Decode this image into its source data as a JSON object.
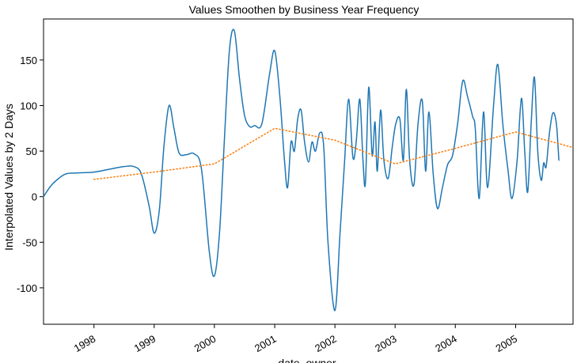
{
  "chart_data": {
    "type": "line",
    "title": "Values Smoothen by Business Year Frequency",
    "xlabel": "date_owner",
    "ylabel": "Interpolated Values by 2 Days",
    "xlim": [
      "1997-03-01",
      "2005-12-15"
    ],
    "ylim": [
      -140,
      195
    ],
    "y_ticks": [
      150,
      100,
      50,
      0,
      -50,
      -100
    ],
    "y_tick_labels": [
      "150",
      "100",
      "50",
      "0",
      "-50",
      "-100"
    ],
    "x_ticks": [
      "1998-01-01",
      "1999-01-01",
      "2000-01-01",
      "2001-01-01",
      "2002-01-01",
      "2003-01-01",
      "2004-01-01",
      "2005-01-01"
    ],
    "x_tick_labels": [
      "1998",
      "1999",
      "2000",
      "2001",
      "2002",
      "2003",
      "2004",
      "2005"
    ],
    "grid": false,
    "series": [
      {
        "color": "#1f77b4",
        "style": "solid",
        "points": [
          [
            "1997-03-01",
            0
          ],
          [
            "1997-04-15",
            12
          ],
          [
            "1997-06-01",
            20
          ],
          [
            "1997-07-15",
            25
          ],
          [
            "1997-09-15",
            26
          ],
          [
            "1998-01-01",
            27
          ],
          [
            "1998-04-01",
            30
          ],
          [
            "1998-07-01",
            33
          ],
          [
            "1998-09-01",
            33
          ],
          [
            "1998-10-15",
            25
          ],
          [
            "1998-12-01",
            -10
          ],
          [
            "1999-01-01",
            -40
          ],
          [
            "1999-02-01",
            -15
          ],
          [
            "1999-03-01",
            55
          ],
          [
            "1999-04-01",
            100
          ],
          [
            "1999-05-01",
            75
          ],
          [
            "1999-06-01",
            48
          ],
          [
            "1999-07-15",
            46
          ],
          [
            "1999-09-01",
            47
          ],
          [
            "1999-10-15",
            30
          ],
          [
            "1999-12-01",
            -60
          ],
          [
            "2000-01-01",
            -87
          ],
          [
            "2000-02-01",
            -40
          ],
          [
            "2000-03-01",
            60
          ],
          [
            "2000-04-01",
            160
          ],
          [
            "2000-05-01",
            182
          ],
          [
            "2000-06-01",
            130
          ],
          [
            "2000-07-01",
            90
          ],
          [
            "2000-08-01",
            77
          ],
          [
            "2000-09-01",
            78
          ],
          [
            "2000-10-15",
            80
          ],
          [
            "2000-12-01",
            135
          ],
          [
            "2001-01-01",
            160
          ],
          [
            "2001-02-01",
            110
          ],
          [
            "2001-03-01",
            40
          ],
          [
            "2001-03-20",
            10
          ],
          [
            "2001-04-10",
            60
          ],
          [
            "2001-04-30",
            50
          ],
          [
            "2001-05-20",
            85
          ],
          [
            "2001-06-10",
            95
          ],
          [
            "2001-07-01",
            60
          ],
          [
            "2001-07-25",
            38
          ],
          [
            "2001-08-15",
            60
          ],
          [
            "2001-09-05",
            50
          ],
          [
            "2001-10-01",
            70
          ],
          [
            "2001-10-25",
            55
          ],
          [
            "2001-11-20",
            -50
          ],
          [
            "2002-01-01",
            -125
          ],
          [
            "2002-02-01",
            -40
          ],
          [
            "2002-03-01",
            40
          ],
          [
            "2002-03-25",
            107
          ],
          [
            "2002-04-20",
            43
          ],
          [
            "2002-05-10",
            60
          ],
          [
            "2002-06-01",
            107
          ],
          [
            "2002-06-20",
            40
          ],
          [
            "2002-07-05",
            15
          ],
          [
            "2002-07-25",
            120
          ],
          [
            "2002-08-15",
            45
          ],
          [
            "2002-09-01",
            82
          ],
          [
            "2002-09-15",
            28
          ],
          [
            "2002-10-05",
            95
          ],
          [
            "2002-10-25",
            40
          ],
          [
            "2002-11-20",
            20
          ],
          [
            "2002-12-15",
            55
          ],
          [
            "2003-01-05",
            80
          ],
          [
            "2003-01-30",
            85
          ],
          [
            "2003-02-20",
            40
          ],
          [
            "2003-03-10",
            118
          ],
          [
            "2003-03-30",
            40
          ],
          [
            "2003-04-25",
            13
          ],
          [
            "2003-05-20",
            80
          ],
          [
            "2003-06-15",
            105
          ],
          [
            "2003-07-05",
            28
          ],
          [
            "2003-07-25",
            93
          ],
          [
            "2003-08-20",
            25
          ],
          [
            "2003-09-15",
            -13
          ],
          [
            "2003-10-15",
            10
          ],
          [
            "2003-11-15",
            35
          ],
          [
            "2003-12-15",
            45
          ],
          [
            "2004-01-15",
            80
          ],
          [
            "2004-02-15",
            127
          ],
          [
            "2004-03-15",
            110
          ],
          [
            "2004-04-15",
            88
          ],
          [
            "2004-05-01",
            75
          ],
          [
            "2004-05-25",
            -2
          ],
          [
            "2004-06-20",
            93
          ],
          [
            "2004-07-15",
            10
          ],
          [
            "2004-08-20",
            100
          ],
          [
            "2004-09-15",
            145
          ],
          [
            "2004-10-15",
            80
          ],
          [
            "2004-11-15",
            30
          ],
          [
            "2004-12-10",
            -2
          ],
          [
            "2005-01-10",
            40
          ],
          [
            "2005-02-05",
            108
          ],
          [
            "2005-02-25",
            50
          ],
          [
            "2005-03-15",
            5
          ],
          [
            "2005-04-05",
            80
          ],
          [
            "2005-04-25",
            131
          ],
          [
            "2005-05-15",
            50
          ],
          [
            "2005-06-05",
            18
          ],
          [
            "2005-06-20",
            37
          ],
          [
            "2005-07-05",
            33
          ],
          [
            "2005-07-25",
            70
          ],
          [
            "2005-08-15",
            92
          ],
          [
            "2005-09-05",
            80
          ],
          [
            "2005-09-20",
            40
          ]
        ]
      },
      {
        "color": "#ff7f0e",
        "style": "dotted",
        "points": [
          [
            "1998-01-01",
            19
          ],
          [
            "1999-01-01",
            27
          ],
          [
            "2000-01-01",
            36
          ],
          [
            "2001-01-01",
            75
          ],
          [
            "2002-01-01",
            62
          ],
          [
            "2003-01-01",
            36
          ],
          [
            "2004-01-01",
            53
          ],
          [
            "2005-01-01",
            71
          ],
          [
            "2005-12-15",
            54
          ]
        ]
      }
    ]
  }
}
